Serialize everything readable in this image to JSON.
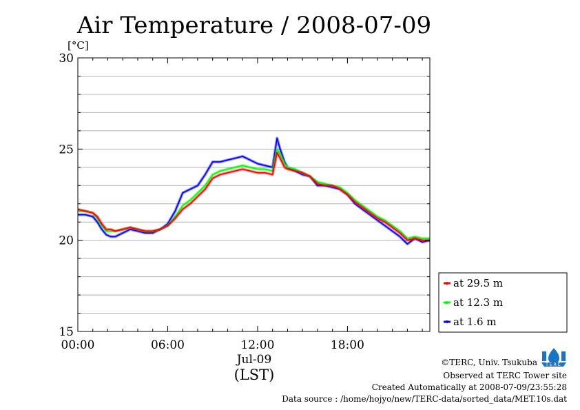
{
  "chart_data": {
    "type": "line",
    "title": "Air Temperature / 2008-07-09",
    "ylabel": "[°C]",
    "xlabel": "(LST)",
    "date_label": "Jul-09",
    "ylim": [
      15,
      30
    ],
    "yticks": [
      "15",
      "20",
      "25",
      "30"
    ],
    "xlim": [
      0,
      23.5
    ],
    "xticks": [
      {
        "hour": 0,
        "label": "00:00"
      },
      {
        "hour": 6,
        "label": "06:00"
      },
      {
        "hour": 12,
        "label": "12:00"
      },
      {
        "hour": 18,
        "label": "18:00"
      }
    ],
    "grid": true,
    "legend_position": "right",
    "series": [
      {
        "name": "at 29.5 m",
        "color": "#ff0000",
        "x": [
          0,
          0.5,
          1,
          1.3,
          1.6,
          1.9,
          2.2,
          2.5,
          3,
          3.5,
          4,
          4.5,
          5,
          5.5,
          6,
          6.5,
          7,
          7.5,
          8,
          8.5,
          9,
          9.5,
          10,
          10.5,
          11,
          11.5,
          12,
          12.5,
          13,
          13.3,
          13.5,
          13.8,
          14,
          14.5,
          15,
          15.5,
          16,
          16.5,
          17,
          17.5,
          18,
          18.5,
          19,
          19.5,
          20,
          20.5,
          21,
          21.5,
          22,
          22.5,
          23,
          23.5
        ],
        "y": [
          21.7,
          21.6,
          21.5,
          21.3,
          20.9,
          20.6,
          20.6,
          20.5,
          20.6,
          20.7,
          20.6,
          20.5,
          20.5,
          20.6,
          20.8,
          21.2,
          21.7,
          22.0,
          22.4,
          22.8,
          23.4,
          23.6,
          23.7,
          23.8,
          23.9,
          23.8,
          23.7,
          23.7,
          23.6,
          24.8,
          24.5,
          24.0,
          23.9,
          23.8,
          23.7,
          23.5,
          23.1,
          23.0,
          23.0,
          22.8,
          22.5,
          22.1,
          21.8,
          21.5,
          21.2,
          21.0,
          20.7,
          20.4,
          20.0,
          20.1,
          20.0,
          20.0
        ]
      },
      {
        "name": "at 12.3 m",
        "color": "#00ff00",
        "x": [
          0,
          0.5,
          1,
          1.3,
          1.6,
          1.9,
          2.2,
          2.5,
          3,
          3.5,
          4,
          4.5,
          5,
          5.5,
          6,
          6.5,
          7,
          7.5,
          8,
          8.5,
          9,
          9.5,
          10,
          10.5,
          11,
          11.5,
          12,
          12.5,
          13,
          13.3,
          13.5,
          13.8,
          14,
          14.5,
          15,
          15.5,
          16,
          16.5,
          17,
          17.5,
          18,
          18.5,
          19,
          19.5,
          20,
          20.5,
          21,
          21.5,
          22,
          22.5,
          23,
          23.5
        ],
        "y": [
          21.6,
          21.6,
          21.5,
          21.2,
          20.8,
          20.5,
          20.5,
          20.5,
          20.6,
          20.7,
          20.6,
          20.5,
          20.5,
          20.6,
          20.8,
          21.3,
          21.9,
          22.2,
          22.6,
          23.0,
          23.6,
          23.8,
          23.9,
          24.0,
          24.1,
          24.0,
          23.9,
          23.9,
          23.8,
          25.0,
          24.7,
          24.2,
          24.0,
          23.9,
          23.7,
          23.5,
          23.2,
          23.1,
          23.0,
          22.9,
          22.6,
          22.2,
          21.9,
          21.6,
          21.3,
          21.1,
          20.8,
          20.5,
          20.1,
          20.2,
          20.1,
          20.1
        ]
      },
      {
        "name": "at 1.6 m",
        "color": "#0000ff",
        "x": [
          0,
          0.5,
          1,
          1.3,
          1.6,
          1.9,
          2.2,
          2.5,
          3,
          3.5,
          4,
          4.5,
          5,
          5.5,
          6,
          6.5,
          7,
          7.5,
          8,
          8.5,
          9,
          9.5,
          10,
          10.5,
          11,
          11.5,
          12,
          12.5,
          13,
          13.3,
          13.5,
          13.8,
          14,
          14.5,
          15,
          15.5,
          16,
          16.5,
          17,
          17.5,
          18,
          18.5,
          19,
          19.5,
          20,
          20.5,
          21,
          21.5,
          22,
          22.5,
          23,
          23.5
        ],
        "y": [
          21.4,
          21.4,
          21.3,
          21.0,
          20.6,
          20.3,
          20.2,
          20.2,
          20.4,
          20.6,
          20.5,
          20.4,
          20.4,
          20.6,
          20.9,
          21.6,
          22.6,
          22.8,
          23.0,
          23.6,
          24.3,
          24.3,
          24.4,
          24.5,
          24.6,
          24.4,
          24.2,
          24.1,
          24.0,
          25.6,
          25.0,
          24.3,
          24.0,
          23.8,
          23.6,
          23.5,
          23.0,
          23.0,
          22.9,
          22.8,
          22.5,
          22.0,
          21.7,
          21.4,
          21.1,
          20.8,
          20.5,
          20.2,
          19.8,
          20.1,
          19.9,
          20.0
        ]
      }
    ]
  },
  "footer": {
    "copyright": "©TERC, Univ. Tsukuba",
    "observed": "Observed at TERC Tower site",
    "created": "Created Automatically at 2008-07-09/23:55:28",
    "source": "Data source : /home/hojyo/new/TERC-data/sorted_data/MET.10s.dat",
    "logo_text": "TERC"
  }
}
